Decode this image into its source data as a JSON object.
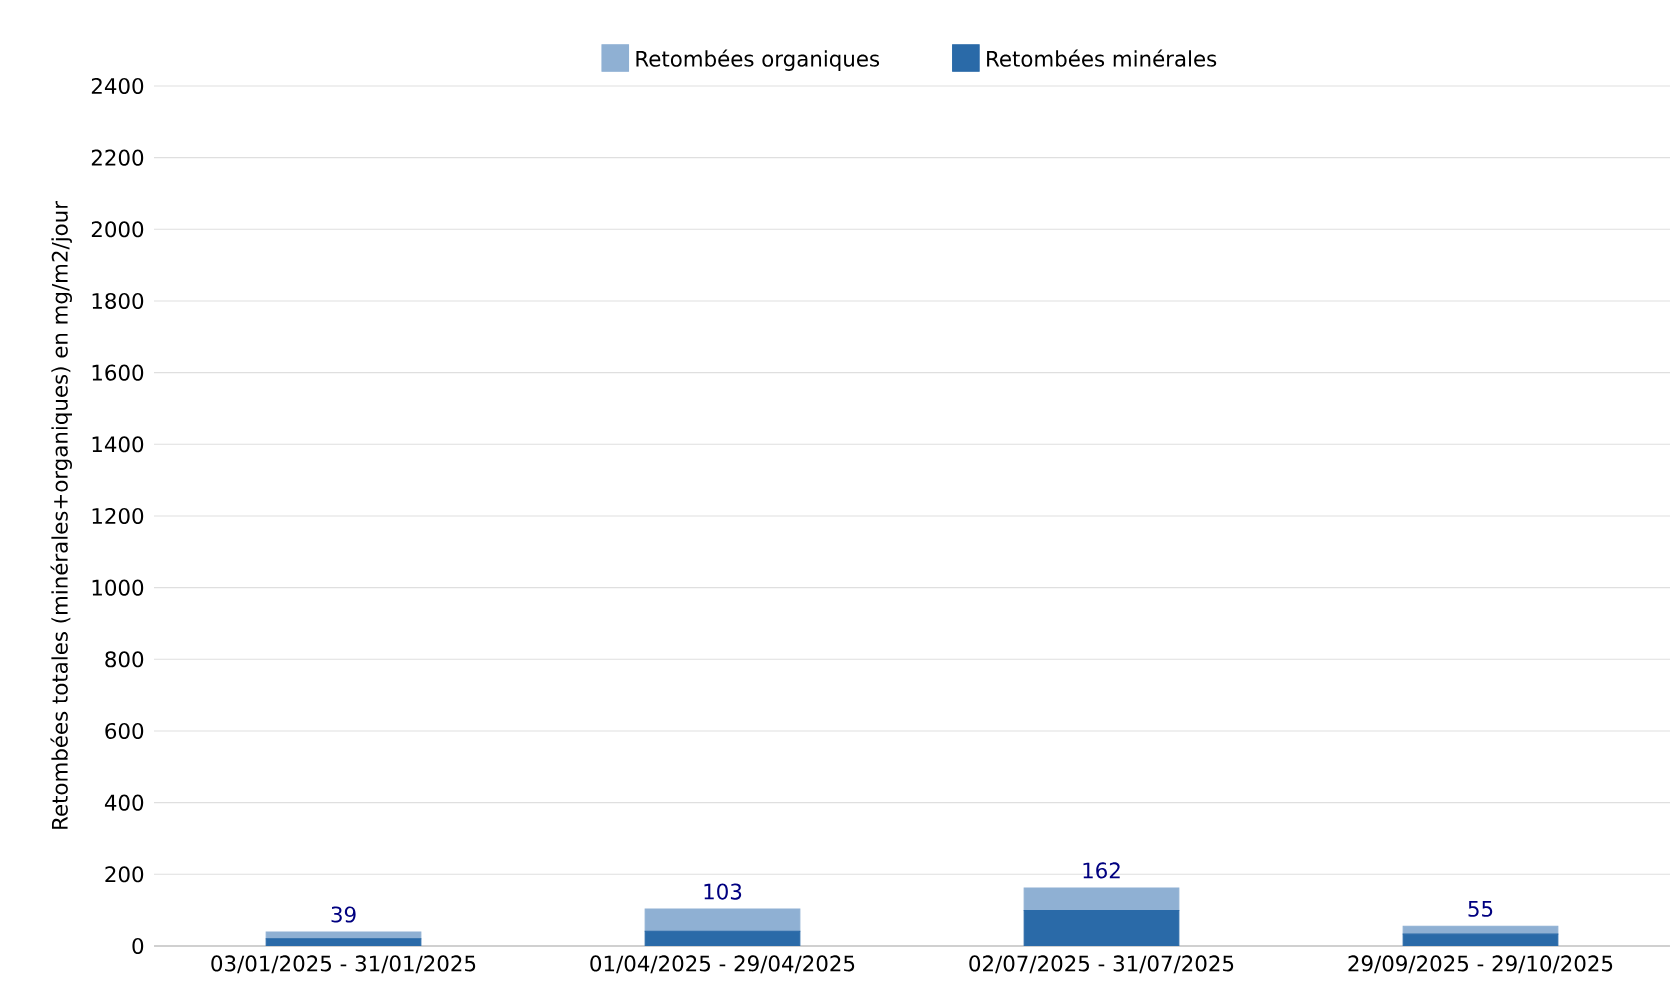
{
  "chart_data": {
    "type": "bar",
    "stacked": true,
    "ylabel": "Retombées totales (minérales+organiques) en mg/m2/jour",
    "categories": [
      "03/01/2025 - 31/01/2025",
      "01/04/2025 - 29/04/2025",
      "02/07/2025 - 31/07/2025",
      "29/09/2025 - 29/10/2025"
    ],
    "series": [
      {
        "name": "Retombées minérales",
        "color": "#2a6aa8",
        "values": [
          20,
          41,
          99,
          33
        ]
      },
      {
        "name": "Retombées organiques",
        "color": "#8fb0d3",
        "values": [
          19,
          62,
          63,
          22
        ]
      }
    ],
    "totals": [
      "39",
      "103",
      "162",
      "55"
    ],
    "ylim": [
      0,
      2400
    ],
    "yticks": [
      0,
      200,
      400,
      600,
      800,
      1000,
      1200,
      1400,
      1600,
      1800,
      2000,
      2200,
      2400
    ],
    "grid": "y",
    "legend": "top"
  }
}
